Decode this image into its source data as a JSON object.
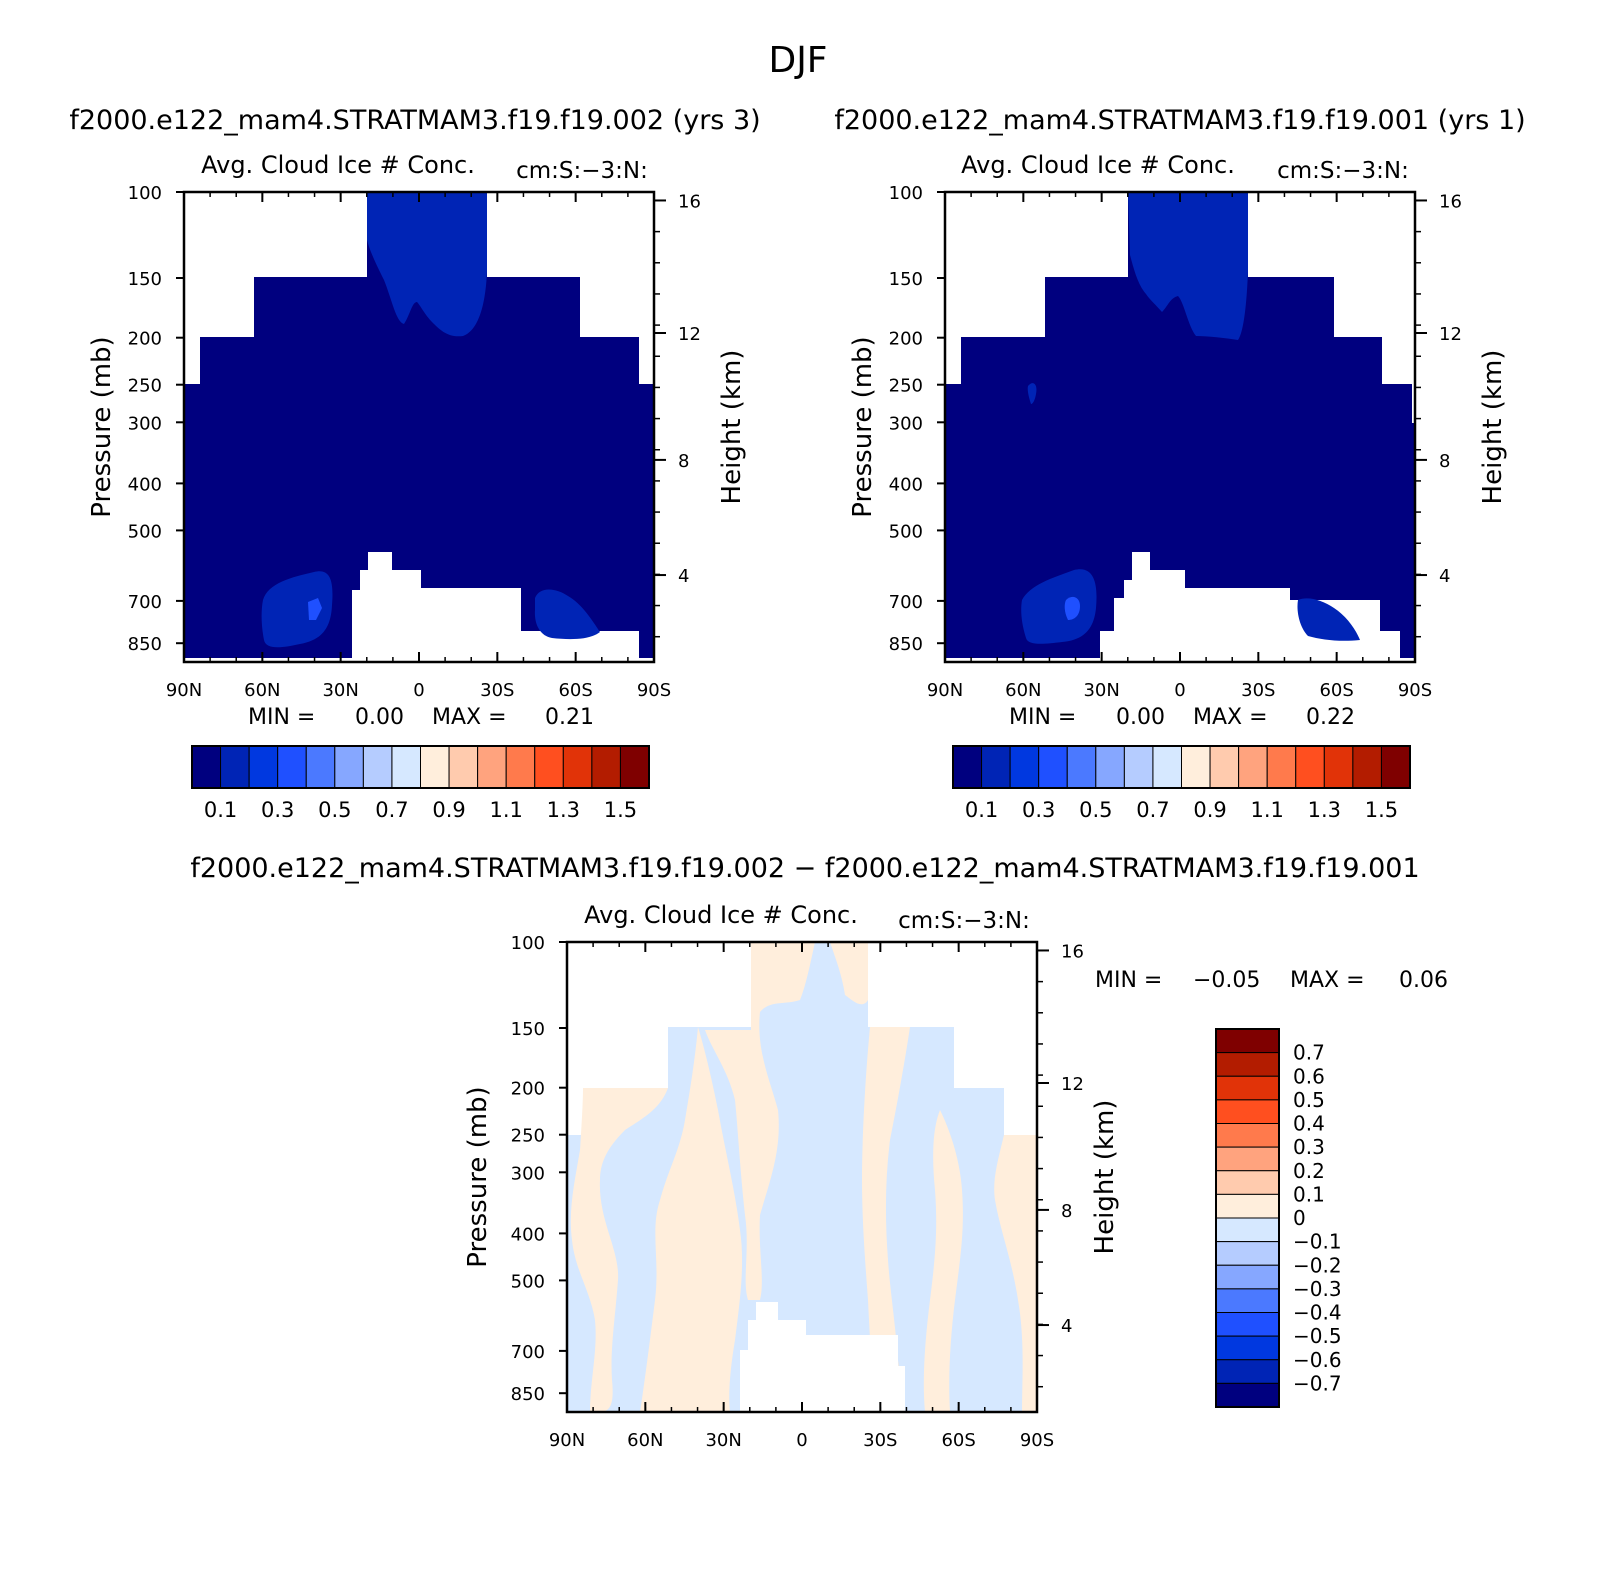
{
  "figure": {
    "title": "DJF",
    "case1_title": "f2000.e122_mam4.STRATMAM3.f19.f19.002 (yrs 3)",
    "case2_title": "f2000.e122_mam4.STRATMAM3.f19.f19.001 (yrs 1)",
    "diff_title": "f2000.e122_mam4.STRATMAM3.f19.f19.002 − f2000.e122_mam4.STRATMAM3.f19.f19.001"
  },
  "colors": {
    "abs_palette": [
      "#00007f",
      "#0024b5",
      "#0038e0",
      "#1f50ff",
      "#4b79ff",
      "#86a7ff",
      "#b5ccff",
      "#d6e8ff",
      "#ffeedc",
      "#ffcbae",
      "#ffa37e",
      "#ff7a4c",
      "#ff4f1f",
      "#e13308",
      "#b31c00",
      "#7f0000"
    ],
    "diff_palette": [
      "#00007f",
      "#0024b5",
      "#0038e0",
      "#1f50ff",
      "#4b79ff",
      "#86a7ff",
      "#b5ccff",
      "#d6e8ff",
      "#ffeedc",
      "#ffcbae",
      "#ffa37e",
      "#ff7a4c",
      "#ff4f1f",
      "#e13308",
      "#b31c00",
      "#7f0000"
    ]
  },
  "chart_data": [
    {
      "type": "heatmap",
      "id": "case1",
      "title": "Avg. Cloud Ice # Conc.",
      "units": "cm:S:−3:N:",
      "xlabel": "",
      "ylabel": "Pressure (mb)",
      "y2label": "Height (km)",
      "xticks": [
        "90N",
        "60N",
        "30N",
        "0",
        "30S",
        "60S",
        "90S"
      ],
      "yticks": [
        "100",
        "150",
        "200",
        "250",
        "300",
        "400",
        "500",
        "700",
        "850"
      ],
      "y2ticks": [
        "16",
        "12",
        "8",
        "4"
      ],
      "min_label": "MIN =",
      "min_value": "0.00",
      "max_label": "MAX =",
      "max_value": "0.21",
      "colorbar_ticks": [
        "0.1",
        "0.3",
        "0.5",
        "0.7",
        "0.9",
        "1.1",
        "1.3",
        "1.5"
      ]
    },
    {
      "type": "heatmap",
      "id": "case2",
      "title": "Avg. Cloud Ice # Conc.",
      "units": "cm:S:−3:N:",
      "xlabel": "",
      "ylabel": "Pressure (mb)",
      "y2label": "Height (km)",
      "xticks": [
        "90N",
        "60N",
        "30N",
        "0",
        "30S",
        "60S",
        "90S"
      ],
      "yticks": [
        "100",
        "150",
        "200",
        "250",
        "300",
        "400",
        "500",
        "700",
        "850"
      ],
      "y2ticks": [
        "16",
        "12",
        "8",
        "4"
      ],
      "min_label": "MIN =",
      "min_value": "0.00",
      "max_label": "MAX =",
      "max_value": "0.22",
      "colorbar_ticks": [
        "0.1",
        "0.3",
        "0.5",
        "0.7",
        "0.9",
        "1.1",
        "1.3",
        "1.5"
      ]
    },
    {
      "type": "heatmap",
      "id": "diff",
      "title": "Avg. Cloud Ice # Conc.",
      "units": "cm:S:−3:N:",
      "xlabel": "",
      "ylabel": "Pressure (mb)",
      "y2label": "Height (km)",
      "xticks": [
        "90N",
        "60N",
        "30N",
        "0",
        "30S",
        "60S",
        "90S"
      ],
      "yticks": [
        "100",
        "150",
        "200",
        "250",
        "300",
        "400",
        "500",
        "700",
        "850"
      ],
      "y2ticks": [
        "16",
        "12",
        "8",
        "4"
      ],
      "min_label": "MIN =",
      "min_value": "−0.05",
      "max_label": "MAX =",
      "max_value": "0.06",
      "colorbar_ticks": [
        "0.7",
        "0.6",
        "0.5",
        "0.4",
        "0.3",
        "0.2",
        "0.1",
        "0",
        "−0.1",
        "−0.2",
        "−0.3",
        "−0.4",
        "−0.5",
        "−0.6",
        "−0.7"
      ]
    }
  ]
}
